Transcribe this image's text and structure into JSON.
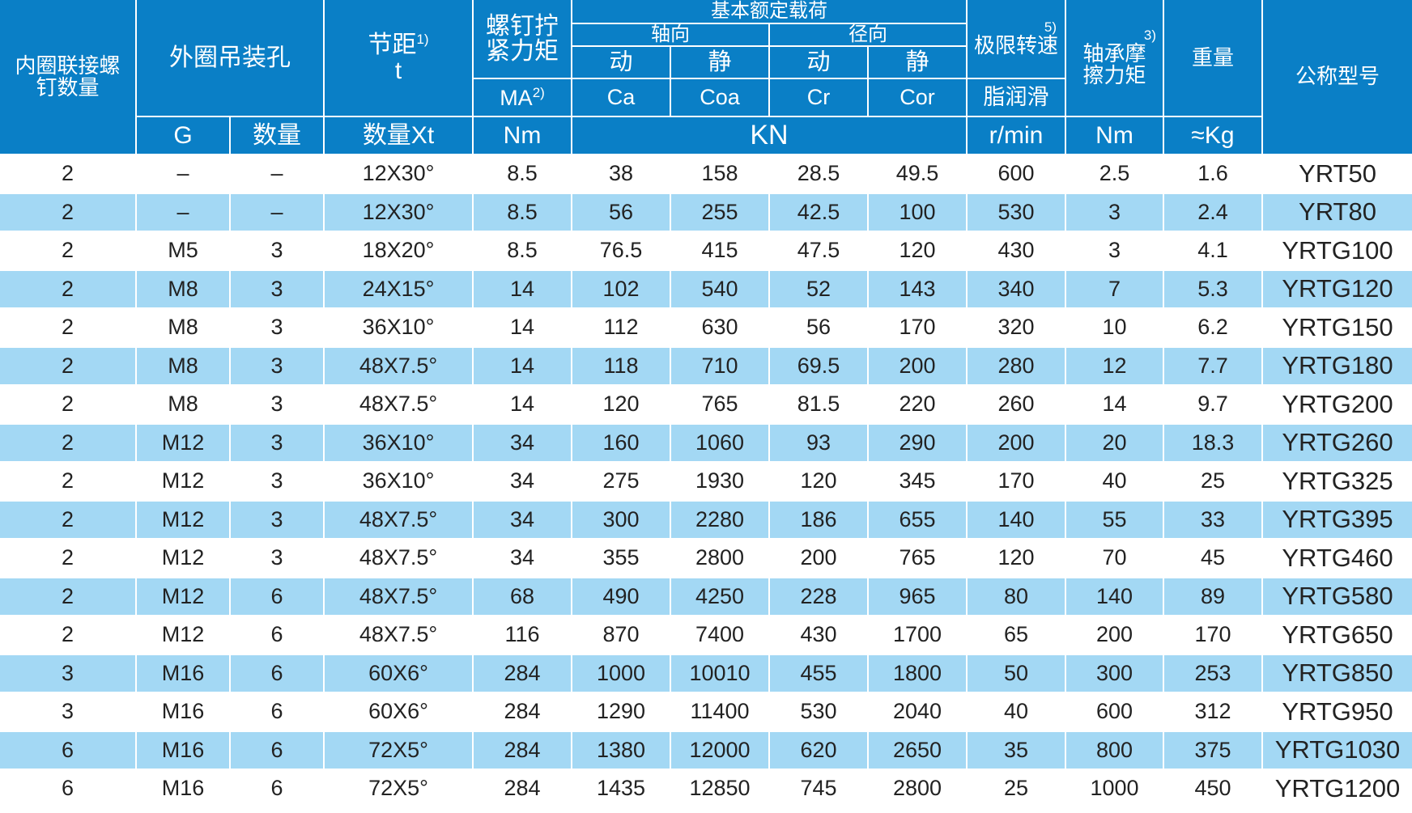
{
  "header": {
    "inner_bolt_count": "内圈联接螺钉数量",
    "outer_lifting_holes": "外圈吊装孔",
    "pitch": "节距",
    "pitch_note": "1)",
    "pitch_symbol": "t",
    "screw_torque": "螺钉拧紧力矩",
    "ma": "MA",
    "ma_note": "2)",
    "basic_load": "基本额定载荷",
    "axial": "轴向",
    "radial": "径向",
    "dynamic": "动",
    "static": "静",
    "ca": "Ca",
    "coa": "Coa",
    "cr": "Cr",
    "cor": "Cor",
    "limit_speed": "极限转速",
    "limit_speed_note": "5)",
    "grease": "脂润滑",
    "friction_torque": "轴承摩擦力矩",
    "friction_note": "3)",
    "weight": "重量",
    "model": "公称型号",
    "g": "G",
    "count": "数量",
    "count_x_t": "数量Xt",
    "unit_nm": "Nm",
    "unit_kn": "KN",
    "unit_rpm": "r/min",
    "unit_nm2": "Nm",
    "unit_kg": "≈Kg"
  },
  "colors": {
    "header": "#0a7fc6",
    "alt_row": "#a3d8f4"
  },
  "rows": [
    [
      "2",
      "–",
      "–",
      "12X30°",
      "8.5",
      "38",
      "158",
      "28.5",
      "49.5",
      "600",
      "2.5",
      "1.6",
      "YRT50"
    ],
    [
      "2",
      "–",
      "–",
      "12X30°",
      "8.5",
      "56",
      "255",
      "42.5",
      "100",
      "530",
      "3",
      "2.4",
      "YRT80"
    ],
    [
      "2",
      "M5",
      "3",
      "18X20°",
      "8.5",
      "76.5",
      "415",
      "47.5",
      "120",
      "430",
      "3",
      "4.1",
      "YRTG100"
    ],
    [
      "2",
      "M8",
      "3",
      "24X15°",
      "14",
      "102",
      "540",
      "52",
      "143",
      "340",
      "7",
      "5.3",
      "YRTG120"
    ],
    [
      "2",
      "M8",
      "3",
      "36X10°",
      "14",
      "112",
      "630",
      "56",
      "170",
      "320",
      "10",
      "6.2",
      "YRTG150"
    ],
    [
      "2",
      "M8",
      "3",
      "48X7.5°",
      "14",
      "118",
      "710",
      "69.5",
      "200",
      "280",
      "12",
      "7.7",
      "YRTG180"
    ],
    [
      "2",
      "M8",
      "3",
      "48X7.5°",
      "14",
      "120",
      "765",
      "81.5",
      "220",
      "260",
      "14",
      "9.7",
      "YRTG200"
    ],
    [
      "2",
      "M12",
      "3",
      "36X10°",
      "34",
      "160",
      "1060",
      "93",
      "290",
      "200",
      "20",
      "18.3",
      "YRTG260"
    ],
    [
      "2",
      "M12",
      "3",
      "36X10°",
      "34",
      "275",
      "1930",
      "120",
      "345",
      "170",
      "40",
      "25",
      "YRTG325"
    ],
    [
      "2",
      "M12",
      "3",
      "48X7.5°",
      "34",
      "300",
      "2280",
      "186",
      "655",
      "140",
      "55",
      "33",
      "YRTG395"
    ],
    [
      "2",
      "M12",
      "3",
      "48X7.5°",
      "34",
      "355",
      "2800",
      "200",
      "765",
      "120",
      "70",
      "45",
      "YRTG460"
    ],
    [
      "2",
      "M12",
      "6",
      "48X7.5°",
      "68",
      "490",
      "4250",
      "228",
      "965",
      "80",
      "140",
      "89",
      "YRTG580"
    ],
    [
      "2",
      "M12",
      "6",
      "48X7.5°",
      "116",
      "870",
      "7400",
      "430",
      "1700",
      "65",
      "200",
      "170",
      "YRTG650"
    ],
    [
      "3",
      "M16",
      "6",
      "60X6°",
      "284",
      "1000",
      "10010",
      "455",
      "1800",
      "50",
      "300",
      "253",
      "YRTG850"
    ],
    [
      "3",
      "M16",
      "6",
      "60X6°",
      "284",
      "1290",
      "11400",
      "530",
      "2040",
      "40",
      "600",
      "312",
      "YRTG950"
    ],
    [
      "6",
      "M16",
      "6",
      "72X5°",
      "284",
      "1380",
      "12000",
      "620",
      "2650",
      "35",
      "800",
      "375",
      "YRTG1030"
    ],
    [
      "6",
      "M16",
      "6",
      "72X5°",
      "284",
      "1435",
      "12850",
      "745",
      "2800",
      "25",
      "1000",
      "450",
      "YRTG1200"
    ]
  ]
}
